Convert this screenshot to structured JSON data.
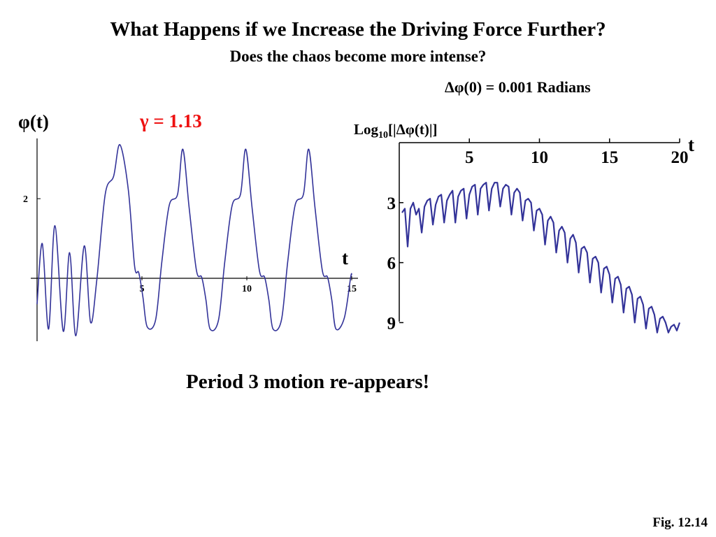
{
  "slide": {
    "title": "What Happens if we Increase the Driving Force Further?",
    "subtitle": "Does the chaos become more intense?",
    "delta_note": "Δφ(0) = 0.001 Radians",
    "caption": "Period 3 motion re-appears!",
    "fig": "Fig. 12.14"
  },
  "colors": {
    "curve": "#333399",
    "gamma": "#ee1111"
  },
  "chart_data": [
    {
      "type": "line",
      "ylabel": "φ(t)",
      "xlabel": "t",
      "annotation": "γ = 1.13",
      "xlim": [
        0,
        15
      ],
      "ylim": [
        -1,
        3.2
      ],
      "xticks": [
        5,
        10,
        15
      ],
      "xtick_labels": [
        "5",
        "10",
        "15"
      ],
      "yticks": [
        2
      ],
      "ytick_labels": [
        "2"
      ],
      "series": [
        {
          "x": [
            0,
            0.25,
            0.55,
            0.85,
            1.25,
            1.55,
            1.85,
            2.25,
            2.55,
            2.85,
            3.25,
            3.65,
            3.95,
            4.35,
            4.65,
            4.85,
            5.05,
            5.25,
            5.65,
            5.95,
            6.3,
            6.7,
            6.95,
            7.25,
            7.6,
            7.85,
            8.05,
            8.25,
            8.65,
            8.95,
            9.3,
            9.7,
            9.95,
            10.25,
            10.6,
            10.85,
            11.05,
            11.25,
            11.65,
            11.95,
            12.3,
            12.7,
            12.95,
            13.25,
            13.6,
            13.85,
            14.05,
            14.25,
            14.65,
            14.95,
            15.0
          ],
          "y": [
            -0.35,
            1.0,
            -0.9,
            1.4,
            -0.95,
            0.8,
            -1.05,
            0.95,
            -0.75,
            0.2,
            2.1,
            2.5,
            3.2,
            2.2,
            0.5,
            0.35,
            -0.2,
            -0.85,
            -0.7,
            0.6,
            1.85,
            2.1,
            3.1,
            1.8,
            0.4,
            0.25,
            -0.25,
            -0.9,
            -0.7,
            0.6,
            1.85,
            2.1,
            3.1,
            1.8,
            0.4,
            0.25,
            -0.25,
            -0.9,
            -0.7,
            0.6,
            1.85,
            2.1,
            3.1,
            1.8,
            0.4,
            0.25,
            -0.25,
            -0.9,
            -0.65,
            0.25,
            0.3
          ]
        }
      ]
    },
    {
      "type": "line",
      "ylabel": "Log₁₀[|Δφ(t)|]",
      "ylabel_base": "Log",
      "ylabel_sub": "10",
      "ylabel_rest": "[|Δφ(t)|]",
      "xlabel": "t",
      "xlim": [
        0,
        20.5
      ],
      "ylim": [
        -10,
        0
      ],
      "xticks": [
        5,
        10,
        15,
        20
      ],
      "xtick_labels": [
        "5",
        "10",
        "15",
        "20"
      ],
      "yticks": [
        -3,
        -6,
        -9
      ],
      "ytick_labels": [
        "3",
        "6",
        "9"
      ],
      "series": [
        {
          "x": [
            0.2,
            0.4,
            0.6,
            0.8,
            1.0,
            1.2,
            1.4,
            1.6,
            1.8,
            2.0,
            2.2,
            2.4,
            2.6,
            2.8,
            3.0,
            3.2,
            3.4,
            3.6,
            3.8,
            4.0,
            4.2,
            4.4,
            4.6,
            4.8,
            5.0,
            5.2,
            5.4,
            5.6,
            5.8,
            6.0,
            6.2,
            6.4,
            6.6,
            6.8,
            7.0,
            7.2,
            7.4,
            7.6,
            7.8,
            8.0,
            8.2,
            8.4,
            8.6,
            8.8,
            9.0,
            9.2,
            9.4,
            9.6,
            9.8,
            10.0,
            10.2,
            10.4,
            10.6,
            10.8,
            11.0,
            11.2,
            11.4,
            11.6,
            11.8,
            12.0,
            12.2,
            12.4,
            12.6,
            12.8,
            13.0,
            13.2,
            13.4,
            13.6,
            13.8,
            14.0,
            14.2,
            14.4,
            14.6,
            14.8,
            15.0,
            15.2,
            15.4,
            15.6,
            15.8,
            16.0,
            16.2,
            16.4,
            16.6,
            16.8,
            17.0,
            17.2,
            17.4,
            17.6,
            17.8,
            18.0,
            18.2,
            18.4,
            18.6,
            18.8,
            19.0,
            19.2,
            19.4,
            19.6,
            19.8,
            20.0
          ],
          "y": [
            -3.5,
            -3.3,
            -5.2,
            -3.3,
            -3.0,
            -3.6,
            -3.3,
            -4.5,
            -3.2,
            -2.9,
            -2.8,
            -4.1,
            -3.1,
            -2.7,
            -2.6,
            -4.0,
            -2.9,
            -2.6,
            -2.4,
            -4.0,
            -2.7,
            -2.4,
            -2.3,
            -3.8,
            -2.6,
            -2.2,
            -2.1,
            -3.6,
            -2.3,
            -2.1,
            -2.0,
            -3.4,
            -2.3,
            -2.0,
            -2.0,
            -3.2,
            -2.3,
            -2.1,
            -2.2,
            -3.6,
            -2.5,
            -2.3,
            -2.5,
            -3.9,
            -2.9,
            -2.8,
            -3.0,
            -4.4,
            -3.4,
            -3.3,
            -3.6,
            -5.1,
            -3.9,
            -3.7,
            -4.0,
            -5.5,
            -4.4,
            -4.2,
            -4.5,
            -6.0,
            -4.8,
            -4.6,
            -5.0,
            -6.5,
            -5.3,
            -5.2,
            -5.5,
            -7.0,
            -5.8,
            -5.7,
            -6.0,
            -7.5,
            -6.3,
            -6.2,
            -6.6,
            -8.0,
            -6.8,
            -6.7,
            -7.1,
            -8.5,
            -7.3,
            -7.2,
            -7.6,
            -9.0,
            -7.8,
            -7.7,
            -8.1,
            -9.3,
            -8.3,
            -8.2,
            -8.6,
            -9.5,
            -8.8,
            -8.7,
            -9.0,
            -9.5,
            -9.2,
            -9.1,
            -9.4,
            -9.0
          ]
        }
      ]
    }
  ]
}
